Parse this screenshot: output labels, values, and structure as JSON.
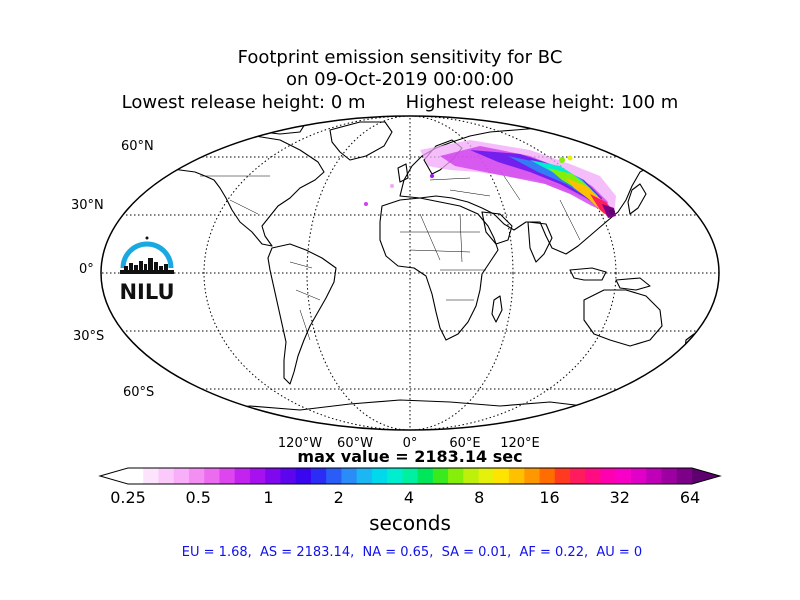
{
  "title": {
    "line1": "Footprint emission sensitivity for BC",
    "line2": "on 09-Oct-2019 00:00:00",
    "line3": "Lowest release height: 0 m       Highest release height: 100 m"
  },
  "map": {
    "projection": "robinson",
    "lat_labels": [
      "60°N",
      "30°N",
      "0°",
      "30°S",
      "60°S"
    ],
    "lon_labels": [
      "120°W",
      "60°W",
      "0°",
      "60°E",
      "120°E"
    ],
    "land_color": "#ffffff",
    "coast_color": "#000000"
  },
  "logo": {
    "text": "NILU",
    "arc_color": "#19a9e0"
  },
  "max_value_text": "max value = 2183.14 sec",
  "colorbar": {
    "ticks": [
      "0.25",
      "0.5",
      "1",
      "2",
      "4",
      "8",
      "16",
      "32",
      "64"
    ],
    "label": "seconds",
    "colors": [
      "#ffffff",
      "#fde4fd",
      "#fbcafb",
      "#f8aef8",
      "#f38ff3",
      "#ec6cef",
      "#dd45ef",
      "#c223ef",
      "#a711ef",
      "#8008ef",
      "#5d06ee",
      "#3a05ef",
      "#2b2cf5",
      "#2a5df7",
      "#2a8cf7",
      "#1db6f5",
      "#00d9ec",
      "#00eed0",
      "#00f0a2",
      "#00e65a",
      "#3aea1e",
      "#86ef0a",
      "#bdf00a",
      "#e5f10a",
      "#ffe400",
      "#ffc000",
      "#ff9800",
      "#ff6c00",
      "#ff3a20",
      "#ff1c5c",
      "#ff0c84",
      "#ff00b0",
      "#f800c8",
      "#e000c8",
      "#c000b8",
      "#9c00a0",
      "#7c0088",
      "#5e0070"
    ]
  },
  "stats_text": "EU = 1.68,  AS = 2183.14,  NA = 0.65,  SA = 0.01,  AF = 0.22,  AU = 0"
}
